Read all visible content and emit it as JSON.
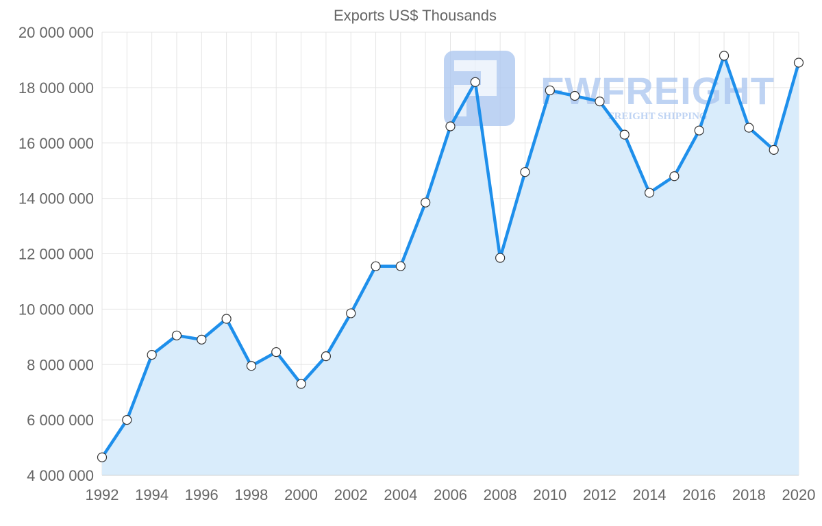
{
  "chart_data": {
    "type": "line",
    "title": "Exports US$ Thousands",
    "xlabel": "",
    "ylabel": "",
    "x": [
      1992,
      1993,
      1994,
      1995,
      1996,
      1997,
      1998,
      1999,
      2000,
      2001,
      2002,
      2003,
      2004,
      2005,
      2006,
      2007,
      2008,
      2009,
      2010,
      2011,
      2012,
      2013,
      2014,
      2015,
      2016,
      2017,
      2018,
      2019,
      2020
    ],
    "xticks": [
      "1992",
      "1994",
      "1996",
      "1998",
      "2000",
      "2002",
      "2004",
      "2006",
      "2008",
      "2010",
      "2012",
      "2014",
      "2016",
      "2018",
      "2020"
    ],
    "ylim": [
      4000000,
      20000000
    ],
    "yticks": [
      "4 000 000",
      "6 000 000",
      "8 000 000",
      "10 000 000",
      "12 000 000",
      "14 000 000",
      "16 000 000",
      "18 000 000",
      "20 000 000"
    ],
    "grid": true,
    "series": [
      {
        "name": "Exports",
        "values": [
          4650000,
          6000000,
          8350000,
          9050000,
          8900000,
          9650000,
          7950000,
          8450000,
          7300000,
          8300000,
          9850000,
          11550000,
          11550000,
          13850000,
          16600000,
          18200000,
          11850000,
          14950000,
          17900000,
          17700000,
          17500000,
          16300000,
          14200000,
          14800000,
          16450000,
          19150000,
          16550000,
          15750000,
          18900000
        ]
      }
    ]
  },
  "colors": {
    "line": "#1E8FEB",
    "fill": "#D9ECFB",
    "grid": "#E5E5E5",
    "axis_text": "#666666",
    "title_text": "#666666",
    "marker_fill": "#FFFFFF",
    "marker_stroke": "#333333",
    "watermark": "#A9C5F0"
  },
  "watermark": {
    "brand": "FWFREIGHT",
    "tagline": "FREIGHT SHIPPING",
    "logo_icon": "fwfreight-logo-icon"
  }
}
